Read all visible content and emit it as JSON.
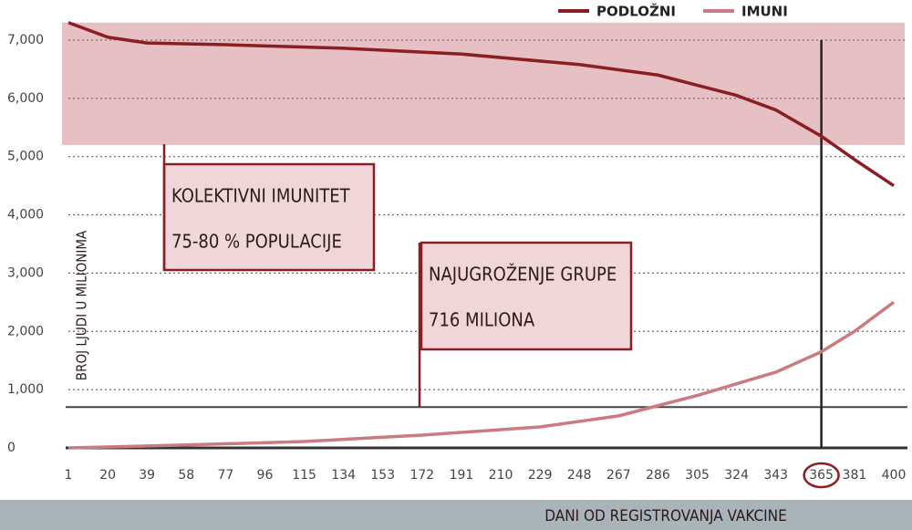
{
  "chart_data": {
    "type": "line",
    "y_label": "BROJ LJUDI U MILIONIMA",
    "x_label": "DANI OD REGISTROVANJA VAKCINE",
    "xlim": [
      1,
      400
    ],
    "ylim": [
      0,
      7500
    ],
    "xticks": [
      1,
      20,
      39,
      58,
      77,
      96,
      115,
      134,
      153,
      172,
      191,
      210,
      229,
      248,
      267,
      286,
      305,
      324,
      343,
      365,
      381,
      400
    ],
    "yticks": [
      0,
      {
        "value": 1000,
        "label": "1,000"
      },
      {
        "value": 2000,
        "label": "2,000"
      },
      {
        "value": 3000,
        "label": "3,000"
      },
      {
        "value": 4000,
        "label": "4,000"
      },
      {
        "value": 5000,
        "label": "5,000"
      },
      {
        "value": 6000,
        "label": "6,000"
      },
      {
        "value": 7000,
        "label": "7,000"
      }
    ],
    "grid": true,
    "legend": "top-right",
    "band": [
      5200,
      7300
    ],
    "band_color": "#e2b5ba",
    "reference_line": 700,
    "highlight_x": 365,
    "series": [
      {
        "name": "PODLOŽNI",
        "color": "#8b1e22",
        "x": [
          1,
          20,
          39,
          77,
          134,
          191,
          248,
          286,
          324,
          343,
          365,
          381,
          400
        ],
        "values": [
          7300,
          7050,
          6950,
          6920,
          6860,
          6760,
          6580,
          6400,
          6050,
          5800,
          5350,
          4950,
          4500
        ]
      },
      {
        "name": "IMUNI",
        "color": "#c97b80",
        "x": [
          1,
          58,
          115,
          172,
          229,
          267,
          305,
          343,
          365,
          381,
          400
        ],
        "values": [
          0,
          50,
          110,
          220,
          360,
          550,
          900,
          1300,
          1650,
          2000,
          2500
        ]
      }
    ],
    "annotations": [
      {
        "lines": [
          "KOLEKTIVNI IMUNITET",
          "75-80 % POPULACIJE"
        ]
      },
      {
        "lines": [
          "NAJUGROŽENJE GRUPE",
          "716 MILIONA"
        ]
      }
    ]
  }
}
